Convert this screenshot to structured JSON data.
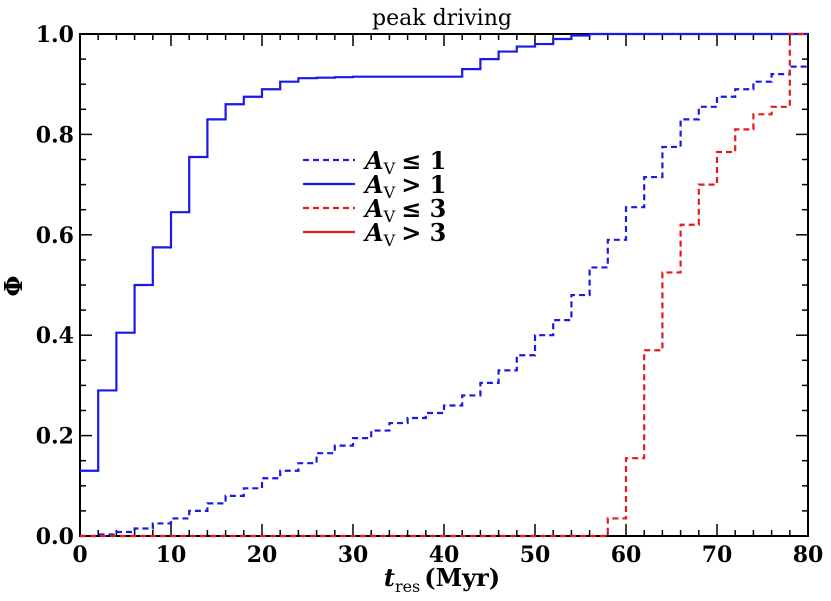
{
  "chart_data": {
    "type": "line",
    "title": "peak driving",
    "xlabel_main": "t",
    "xlabel_sub": "res",
    "xlabel_unit": "(Myr)",
    "ylabel": "Φ",
    "xlim": [
      0,
      80
    ],
    "ylim": [
      0,
      1.0
    ],
    "x_ticks": [
      0,
      10,
      20,
      30,
      40,
      50,
      60,
      70,
      80
    ],
    "x_tick_labels": [
      "0",
      "10",
      "20",
      "30",
      "40",
      "50",
      "60",
      "70",
      "80"
    ],
    "y_ticks": [
      0.0,
      0.2,
      0.4,
      0.6,
      0.8,
      1.0
    ],
    "y_tick_labels": [
      "0.0",
      "0.2",
      "0.4",
      "0.6",
      "0.8",
      "1.0"
    ],
    "grid": false,
    "legend_placement": "center",
    "series": [
      {
        "name": "A_V ≤ 1 (dashed)",
        "legend_label": "≤ 1",
        "color": "#1a1ae6",
        "dash": true,
        "x": [
          0,
          2,
          4,
          6,
          8,
          10,
          12,
          14,
          16,
          18,
          20,
          22,
          24,
          26,
          28,
          30,
          32,
          34,
          36,
          38,
          40,
          42,
          44,
          46,
          48,
          50,
          52,
          54,
          56,
          58,
          60,
          62,
          64,
          66,
          68,
          70,
          72,
          74,
          76,
          78
        ],
        "y": [
          0.0,
          0.003,
          0.008,
          0.015,
          0.025,
          0.035,
          0.05,
          0.065,
          0.08,
          0.095,
          0.115,
          0.13,
          0.145,
          0.165,
          0.18,
          0.195,
          0.21,
          0.225,
          0.235,
          0.245,
          0.26,
          0.28,
          0.305,
          0.33,
          0.36,
          0.4,
          0.43,
          0.48,
          0.535,
          0.59,
          0.655,
          0.715,
          0.775,
          0.83,
          0.855,
          0.875,
          0.89,
          0.905,
          0.92,
          0.935
        ]
      },
      {
        "name": "A_V > 1 (solid)",
        "legend_label": "> 1",
        "color": "#1a1ae6",
        "dash": false,
        "x": [
          0,
          2,
          4,
          6,
          8,
          10,
          12,
          14,
          16,
          18,
          20,
          22,
          24,
          26,
          28,
          30,
          32,
          34,
          36,
          38,
          40,
          42,
          44,
          46,
          48,
          50,
          52,
          54,
          56,
          58,
          60,
          62,
          64,
          66,
          68,
          70,
          72,
          74,
          76,
          78
        ],
        "y": [
          0.13,
          0.29,
          0.405,
          0.5,
          0.575,
          0.645,
          0.755,
          0.83,
          0.86,
          0.875,
          0.89,
          0.905,
          0.912,
          0.913,
          0.914,
          0.915,
          0.915,
          0.915,
          0.915,
          0.915,
          0.915,
          0.93,
          0.95,
          0.965,
          0.975,
          0.98,
          0.99,
          0.997,
          1.0,
          1.0,
          1.0,
          1.0,
          1.0,
          1.0,
          1.0,
          1.0,
          1.0,
          1.0,
          1.0,
          1.0
        ]
      },
      {
        "name": "A_V ≤ 3 (dashed)",
        "legend_label": "≤ 3",
        "color": "#e61a1a",
        "dash": true,
        "x": [
          0,
          2,
          4,
          6,
          8,
          10,
          12,
          14,
          16,
          18,
          20,
          22,
          24,
          26,
          28,
          30,
          32,
          34,
          36,
          38,
          40,
          42,
          44,
          46,
          48,
          50,
          52,
          54,
          56,
          58,
          60,
          62,
          64,
          66,
          68,
          70,
          72,
          74,
          76,
          78
        ],
        "y": [
          0.0,
          0.0,
          0.0,
          0.0,
          0.0,
          0.0,
          0.0,
          0.0,
          0.0,
          0.0,
          0.0,
          0.0,
          0.0,
          0.0,
          0.0,
          0.0,
          0.0,
          0.0,
          0.0,
          0.0,
          0.0,
          0.0,
          0.0,
          0.0,
          0.0,
          0.0,
          0.0,
          0.0,
          0.0,
          0.035,
          0.155,
          0.37,
          0.525,
          0.62,
          0.7,
          0.765,
          0.81,
          0.84,
          0.855,
          1.0
        ]
      },
      {
        "name": "A_V > 3 (solid)",
        "legend_label": "> 3",
        "color": "#e61a1a",
        "dash": false,
        "x": [],
        "y": []
      }
    ],
    "legend_symbol": "A",
    "legend_symbol_sub": "V"
  }
}
